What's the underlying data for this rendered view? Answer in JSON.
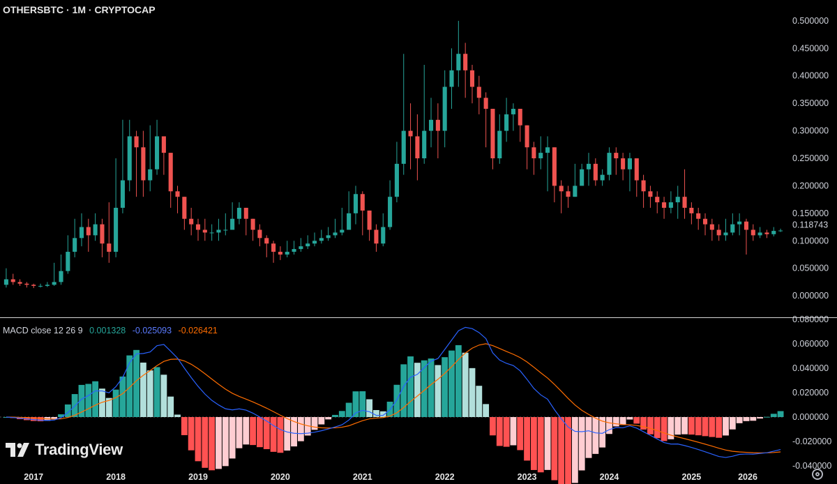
{
  "header": {
    "title": "OTHERSBTC · 1M · CRYPTOCAP"
  },
  "macd_legend": {
    "label": "MACD close 12 26 9",
    "hist": "0.001328",
    "macd": "-0.025093",
    "signal": "-0.026421"
  },
  "watermark": {
    "text": "TradingView"
  },
  "colors": {
    "up": "#26a69a",
    "down": "#ef5350",
    "hist_up_strong": "#26a69a",
    "hist_up_weak": "#b2dfdb",
    "hist_down_strong": "#ff5252",
    "hist_down_weak": "#ffcdd2",
    "macd": "#2962ff",
    "signal": "#ff6d00"
  },
  "icons": {
    "settings": "gear-icon"
  },
  "chart_data": [
    {
      "type": "candlestick",
      "symbol": "OTHERSBTC",
      "interval": "1M",
      "x_tick_labels": [
        "2017",
        "2018",
        "2019",
        "2020",
        "2021",
        "2022",
        "2023",
        "2024",
        "2025",
        "2026"
      ],
      "y_tick_labels": [
        "0.500000",
        "0.450000",
        "0.400000",
        "0.350000",
        "0.300000",
        "0.250000",
        "0.200000",
        "0.150000",
        "0.100000",
        "0.050000",
        "0.000000"
      ],
      "ylim": [
        -0.01,
        0.51
      ],
      "last_price_label": "0.118743",
      "start_month": "2016-09",
      "closes": [
        0.03,
        0.025,
        0.022,
        0.02,
        0.018,
        0.018,
        0.02,
        0.025,
        0.045,
        0.08,
        0.105,
        0.125,
        0.11,
        0.13,
        0.095,
        0.08,
        0.16,
        0.21,
        0.29,
        0.27,
        0.21,
        0.23,
        0.29,
        0.26,
        0.19,
        0.18,
        0.14,
        0.13,
        0.12,
        0.115,
        0.115,
        0.12,
        0.12,
        0.14,
        0.16,
        0.14,
        0.12,
        0.105,
        0.095,
        0.08,
        0.075,
        0.08,
        0.085,
        0.09,
        0.095,
        0.1,
        0.105,
        0.11,
        0.115,
        0.12,
        0.15,
        0.185,
        0.155,
        0.12,
        0.095,
        0.125,
        0.18,
        0.24,
        0.3,
        0.29,
        0.25,
        0.3,
        0.32,
        0.3,
        0.38,
        0.41,
        0.44,
        0.41,
        0.38,
        0.36,
        0.34,
        0.25,
        0.3,
        0.33,
        0.34,
        0.31,
        0.27,
        0.25,
        0.26,
        0.27,
        0.2,
        0.19,
        0.18,
        0.2,
        0.23,
        0.24,
        0.21,
        0.22,
        0.26,
        0.25,
        0.23,
        0.25,
        0.21,
        0.19,
        0.18,
        0.17,
        0.16,
        0.17,
        0.18,
        0.16,
        0.15,
        0.14,
        0.13,
        0.12,
        0.11,
        0.115,
        0.13,
        0.135,
        0.12,
        0.11,
        0.115,
        0.112,
        0.118,
        0.1187
      ],
      "highs": [
        0.05,
        0.04,
        0.03,
        0.025,
        0.022,
        0.022,
        0.025,
        0.06,
        0.075,
        0.11,
        0.14,
        0.15,
        0.14,
        0.15,
        0.14,
        0.17,
        0.25,
        0.32,
        0.32,
        0.3,
        0.3,
        0.31,
        0.32,
        0.28,
        0.21,
        0.2,
        0.18,
        0.16,
        0.14,
        0.14,
        0.13,
        0.14,
        0.15,
        0.17,
        0.17,
        0.16,
        0.14,
        0.13,
        0.11,
        0.1,
        0.09,
        0.1,
        0.1,
        0.105,
        0.11,
        0.115,
        0.12,
        0.125,
        0.14,
        0.16,
        0.19,
        0.2,
        0.19,
        0.15,
        0.13,
        0.15,
        0.21,
        0.28,
        0.44,
        0.35,
        0.33,
        0.42,
        0.36,
        0.35,
        0.41,
        0.45,
        0.5,
        0.46,
        0.42,
        0.4,
        0.37,
        0.34,
        0.33,
        0.36,
        0.35,
        0.34,
        0.31,
        0.28,
        0.29,
        0.29,
        0.27,
        0.21,
        0.2,
        0.24,
        0.24,
        0.26,
        0.25,
        0.23,
        0.27,
        0.27,
        0.26,
        0.26,
        0.25,
        0.22,
        0.2,
        0.19,
        0.18,
        0.19,
        0.2,
        0.23,
        0.17,
        0.16,
        0.15,
        0.14,
        0.13,
        0.14,
        0.15,
        0.15,
        0.14,
        0.13,
        0.125,
        0.12,
        0.125,
        0.122
      ],
      "lows": [
        0.015,
        0.02,
        0.018,
        0.015,
        0.014,
        0.015,
        0.016,
        0.018,
        0.02,
        0.04,
        0.07,
        0.09,
        0.08,
        0.1,
        0.07,
        0.06,
        0.07,
        0.15,
        0.19,
        0.18,
        0.18,
        0.19,
        0.22,
        0.22,
        0.16,
        0.15,
        0.12,
        0.11,
        0.1,
        0.1,
        0.1,
        0.1,
        0.11,
        0.12,
        0.13,
        0.11,
        0.1,
        0.09,
        0.07,
        0.06,
        0.065,
        0.07,
        0.075,
        0.08,
        0.085,
        0.09,
        0.095,
        0.1,
        0.105,
        0.11,
        0.12,
        0.13,
        0.11,
        0.1,
        0.08,
        0.09,
        0.12,
        0.17,
        0.22,
        0.23,
        0.21,
        0.24,
        0.27,
        0.25,
        0.27,
        0.34,
        0.38,
        0.36,
        0.35,
        0.33,
        0.27,
        0.23,
        0.24,
        0.28,
        0.3,
        0.28,
        0.23,
        0.22,
        0.23,
        0.19,
        0.17,
        0.15,
        0.16,
        0.18,
        0.2,
        0.2,
        0.2,
        0.2,
        0.21,
        0.22,
        0.21,
        0.19,
        0.18,
        0.16,
        0.16,
        0.15,
        0.14,
        0.15,
        0.14,
        0.14,
        0.13,
        0.12,
        0.11,
        0.1,
        0.1,
        0.1,
        0.11,
        0.11,
        0.075,
        0.1,
        0.105,
        0.105,
        0.108,
        0.116
      ]
    },
    {
      "type": "macd",
      "parameters": "close 12 26 9",
      "y_tick_labels": [
        "0.080000",
        "0.060000",
        "0.040000",
        "0.020000",
        "0.000000",
        "-0.020000",
        "-0.040000"
      ],
      "ylim": [
        -0.04,
        0.08
      ],
      "hist_display_scale": 2.5,
      "series": [
        {
          "name": "MACD",
          "legend_value": "-0.025093"
        },
        {
          "name": "Signal",
          "legend_value": "-0.026421"
        },
        {
          "name": "Histogram",
          "legend_value": "0.001328"
        }
      ]
    }
  ]
}
